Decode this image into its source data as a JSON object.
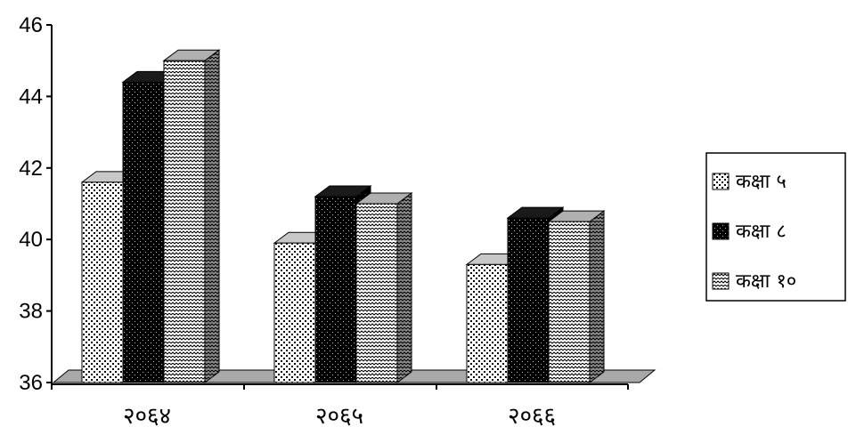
{
  "chart_data": {
    "type": "bar",
    "style": "3d-clustered-column",
    "categories": [
      "२०६४",
      "२०६५",
      "२०६६"
    ],
    "series": [
      {
        "name": "कक्षा ५",
        "values": [
          41.6,
          39.9,
          39.3
        ],
        "pattern": "dots"
      },
      {
        "name": "कक्षा ८",
        "values": [
          44.4,
          41.2,
          40.6
        ],
        "pattern": "dark"
      },
      {
        "name": "कक्षा १०",
        "values": [
          45.0,
          41.0,
          40.5
        ],
        "pattern": "zigzag"
      }
    ],
    "title": "",
    "xlabel": "",
    "ylabel": "",
    "ylim": [
      36,
      46
    ],
    "yticks": [
      "36",
      "38",
      "40",
      "42",
      "44",
      "46"
    ],
    "grid": false,
    "legend": "right",
    "floor_color": "#a8a8a8"
  }
}
